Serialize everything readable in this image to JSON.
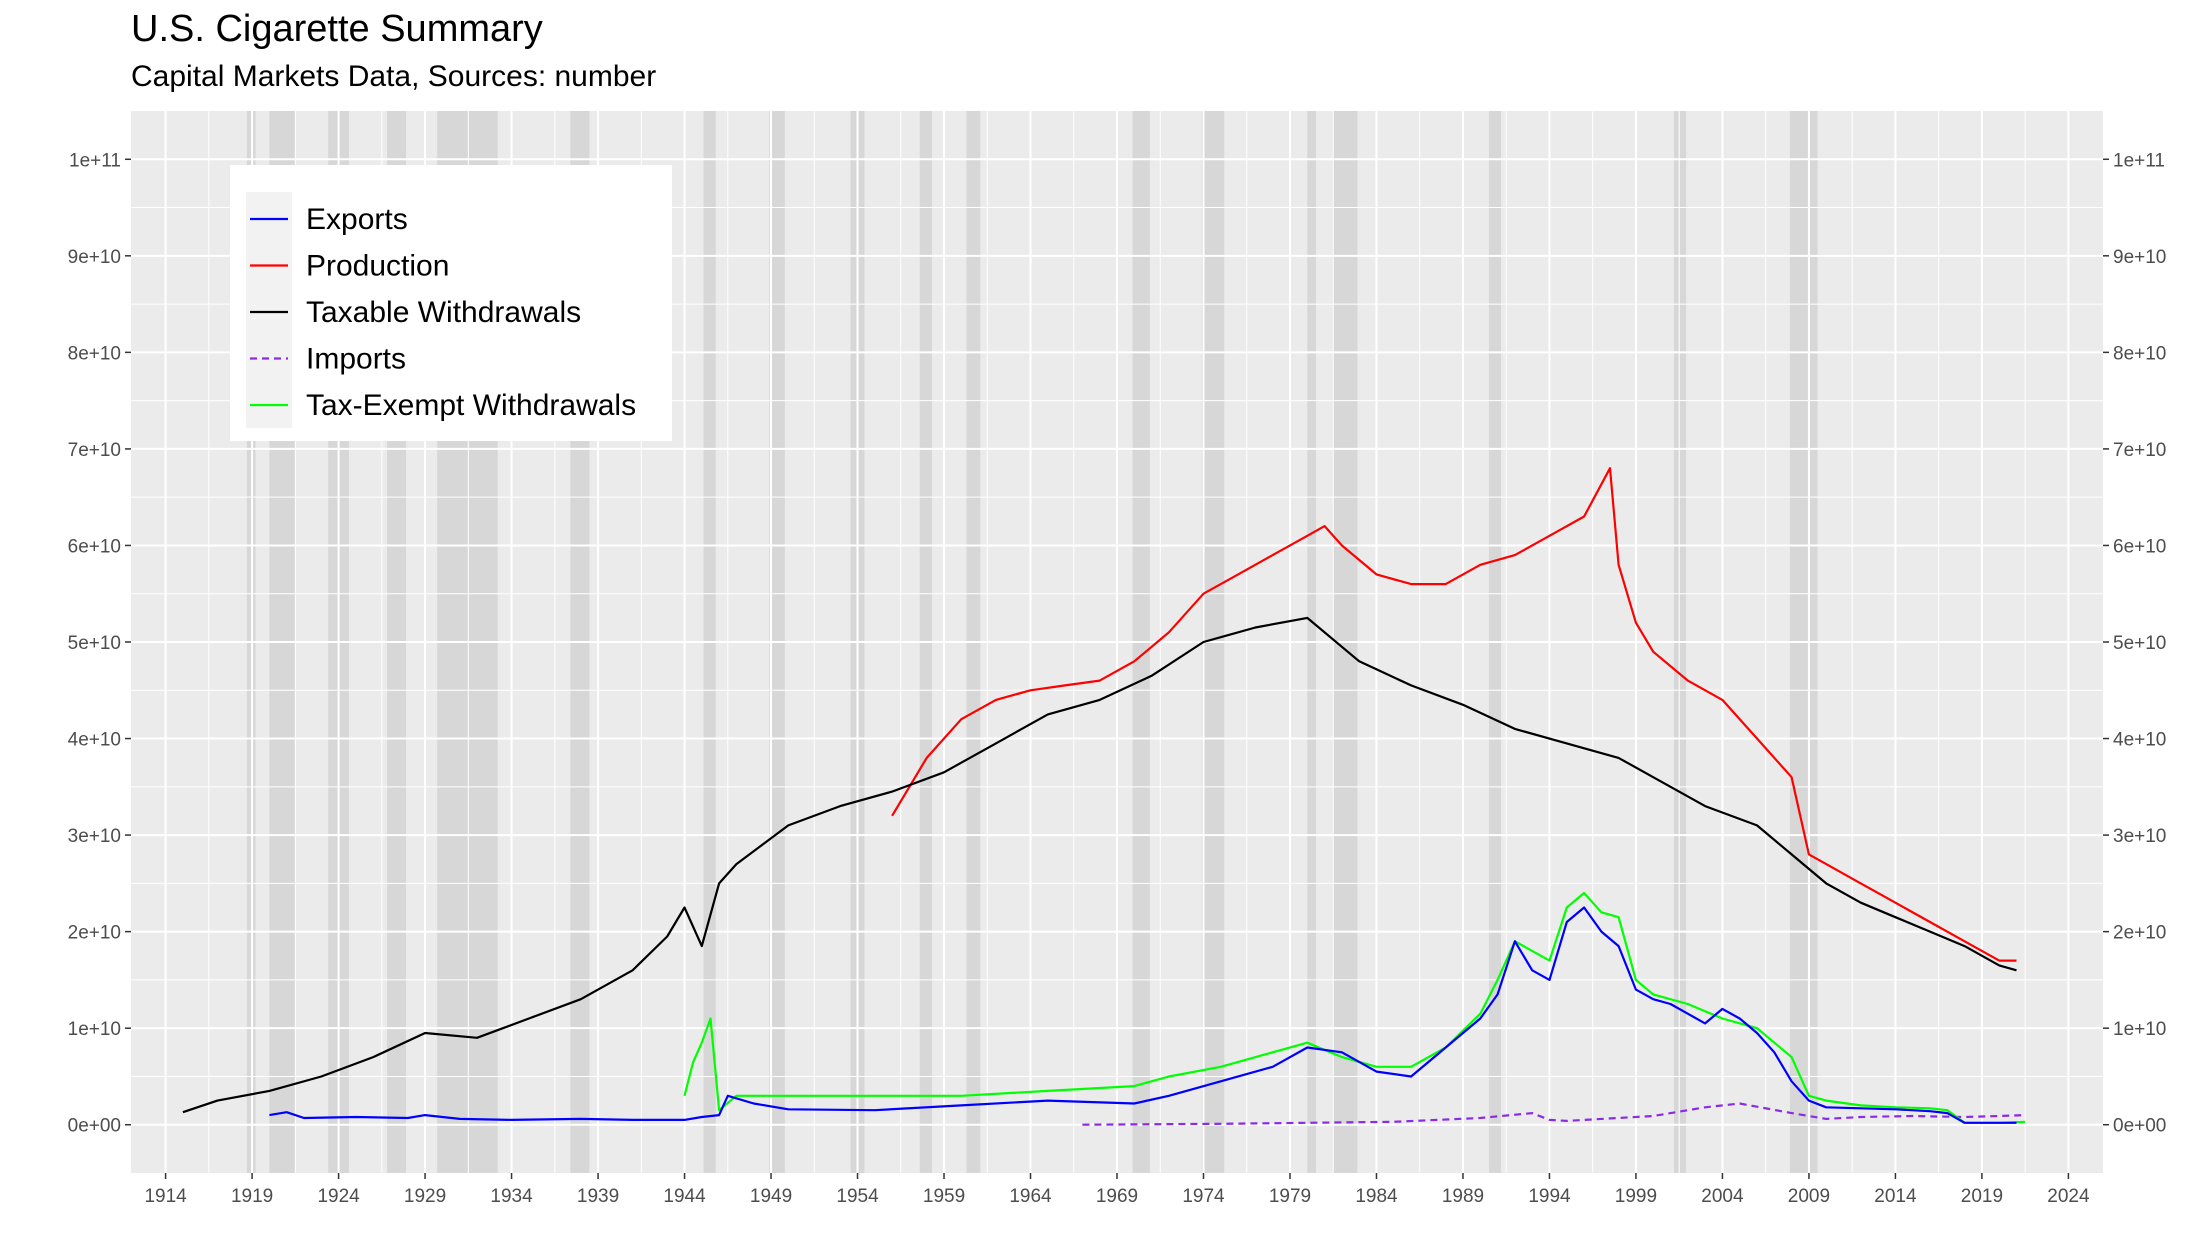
{
  "chart_data": {
    "type": "line",
    "title": "U.S. Cigarette Summary",
    "subtitle": "Capital Markets Data, Sources: number",
    "xlabel": "",
    "ylabel": "",
    "x_range": [
      1912,
      2026
    ],
    "x_ticks": [
      "1914",
      "1919",
      "1924",
      "1929",
      "1934",
      "1939",
      "1944",
      "1949",
      "1954",
      "1959",
      "1964",
      "1969",
      "1974",
      "1979",
      "1984",
      "1989",
      "1994",
      "1999",
      "2004",
      "2009",
      "2014",
      "2019",
      "2024"
    ],
    "ylim": [
      -5000000000,
      105000000000
    ],
    "y_ticks": [
      0,
      10000000000,
      20000000000,
      30000000000,
      40000000000,
      50000000000,
      60000000000,
      70000000000,
      80000000000,
      90000000000,
      100000000000
    ],
    "y_tick_labels": [
      "0e+00",
      "1e+10",
      "2e+10",
      "3e+10",
      "4e+10",
      "5e+10",
      "6e+10",
      "7e+10",
      "8e+10",
      "9e+10",
      "1e+11"
    ],
    "dual_y_axis": true,
    "grid": true,
    "legend_position": "top-left",
    "recession_shading": [
      [
        1918.7,
        1919.2
      ],
      [
        1920.0,
        1921.5
      ],
      [
        1923.4,
        1924.6
      ],
      [
        1926.8,
        1927.9
      ],
      [
        1929.7,
        1933.2
      ],
      [
        1937.4,
        1938.5
      ],
      [
        1945.1,
        1945.8
      ],
      [
        1948.9,
        1949.8
      ],
      [
        1953.6,
        1954.4
      ],
      [
        1957.6,
        1958.3
      ],
      [
        1960.3,
        1961.1
      ],
      [
        1969.9,
        1970.9
      ],
      [
        1973.9,
        1975.2
      ],
      [
        1980.0,
        1980.5
      ],
      [
        1981.5,
        1982.9
      ],
      [
        1990.5,
        1991.2
      ],
      [
        2001.2,
        2001.9
      ],
      [
        2007.9,
        2009.5
      ]
    ],
    "series": [
      {
        "name": "Exports",
        "color": "#0000ff",
        "dash": "solid",
        "x": [
          1920,
          1921,
          1922,
          1925,
          1928,
          1929,
          1931,
          1934,
          1938,
          1941,
          1944,
          1945,
          1946,
          1946.5,
          1948,
          1950,
          1955,
          1960,
          1965,
          1970,
          1972,
          1975,
          1978,
          1980,
          1982,
          1984,
          1986,
          1988,
          1990,
          1991,
          1992,
          1993,
          1994,
          1995,
          1996,
          1997,
          1998,
          1999,
          2000,
          2001,
          2002,
          2003,
          2004,
          2005,
          2006,
          2007,
          2008,
          2009,
          2010,
          2012,
          2014,
          2016,
          2017,
          2018,
          2019,
          2020,
          2021
        ],
        "y": [
          1000000000,
          1300000000,
          700000000,
          800000000,
          700000000,
          1000000000,
          600000000,
          500000000,
          600000000,
          500000000,
          500000000,
          800000000,
          1000000000,
          3000000000,
          2200000000,
          1600000000,
          1500000000,
          2000000000,
          2500000000,
          2200000000,
          3000000000,
          4500000000,
          6000000000,
          8000000000,
          7500000000,
          5500000000,
          5000000000,
          8000000000,
          11000000000,
          13500000000,
          19000000000,
          16000000000,
          15000000000,
          21000000000,
          22500000000,
          20000000000,
          18500000000,
          14000000000,
          13000000000,
          12500000000,
          11500000000,
          10500000000,
          12000000000,
          11000000000,
          9500000000,
          7500000000,
          4500000000,
          2500000000,
          1800000000,
          1700000000,
          1600000000,
          1400000000,
          1200000000,
          200000000,
          200000000,
          200000000,
          200000000
        ]
      },
      {
        "name": "Production",
        "color": "#ff0000",
        "dash": "solid",
        "x": [
          1956,
          1958,
          1960,
          1962,
          1964,
          1966,
          1968,
          1970,
          1972,
          1974,
          1976,
          1978,
          1980,
          1981,
          1982,
          1984,
          1986,
          1988,
          1990,
          1992,
          1994,
          1996,
          1997.5,
          1998,
          1999,
          2000,
          2002,
          2004,
          2006,
          2008,
          2009,
          2010,
          2012,
          2014,
          2016,
          2018,
          2019,
          2020,
          2021
        ],
        "y": [
          32000000000,
          38000000000,
          42000000000,
          44000000000,
          45000000000,
          45500000000,
          46000000000,
          48000000000,
          51000000000,
          55000000000,
          57000000000,
          59000000000,
          61000000000,
          62000000000,
          60000000000,
          57000000000,
          56000000000,
          56000000000,
          58000000000,
          59000000000,
          61000000000,
          63000000000,
          68000000000,
          58000000000,
          52000000000,
          49000000000,
          46000000000,
          44000000000,
          40000000000,
          36000000000,
          28000000000,
          27000000000,
          25000000000,
          23000000000,
          21000000000,
          19000000000,
          18000000000,
          17000000000,
          17000000000
        ]
      },
      {
        "name": "Taxable Withdrawals",
        "color": "#000000",
        "dash": "solid",
        "x": [
          1915,
          1917,
          1920,
          1923,
          1926,
          1929,
          1932,
          1935,
          1938,
          1941,
          1943,
          1944,
          1945,
          1946,
          1947,
          1950,
          1953,
          1956,
          1959,
          1962,
          1965,
          1968,
          1971,
          1974,
          1977,
          1980,
          1983,
          1986,
          1989,
          1992,
          1995,
          1998,
          2000,
          2003,
          2006,
          2008,
          2010,
          2012,
          2014,
          2016,
          2018,
          2020,
          2021
        ],
        "y": [
          1300000000,
          2500000000,
          3500000000,
          5000000000,
          7000000000,
          9500000000,
          9000000000,
          11000000000,
          13000000000,
          16000000000,
          19500000000,
          22500000000,
          18500000000,
          25000000000,
          27000000000,
          31000000000,
          33000000000,
          34500000000,
          36500000000,
          39500000000,
          42500000000,
          44000000000,
          46500000000,
          50000000000,
          51500000000,
          52500000000,
          48000000000,
          45500000000,
          43500000000,
          41000000000,
          39500000000,
          38000000000,
          36000000000,
          33000000000,
          31000000000,
          28000000000,
          25000000000,
          23000000000,
          21500000000,
          20000000000,
          18500000000,
          16500000000,
          16000000000
        ]
      },
      {
        "name": "Imports",
        "color": "#8b2be2",
        "dash": "dashed",
        "x": [
          1967,
          1975,
          1985,
          1990,
          1993,
          1994,
          1995,
          2000,
          2003,
          2005,
          2008,
          2010,
          2012,
          2015,
          2018,
          2020,
          2021.5
        ],
        "y": [
          0,
          100000000,
          300000000,
          700000000,
          1200000000,
          500000000,
          400000000,
          900000000,
          1800000000,
          2200000000,
          1200000000,
          600000000,
          800000000,
          900000000,
          800000000,
          900000000,
          1000000000
        ]
      },
      {
        "name": "Tax-Exempt Withdrawals",
        "color": "#00ff00",
        "dash": "solid",
        "x": [
          1944,
          1944.5,
          1945,
          1945.5,
          1946,
          1947,
          1950,
          1955,
          1960,
          1965,
          1970,
          1972,
          1975,
          1978,
          1980,
          1982,
          1984,
          1986,
          1988,
          1990,
          1991,
          1992,
          1993,
          1994,
          1995,
          1996,
          1997,
          1998,
          1999,
          2000,
          2002,
          2004,
          2006,
          2008,
          2009,
          2010,
          2012,
          2014,
          2016,
          2017,
          2018,
          2020,
          2021.5
        ],
        "y": [
          3000000000,
          6500000000,
          8500000000,
          11000000000,
          1500000000,
          3000000000,
          3000000000,
          3000000000,
          3000000000,
          3500000000,
          4000000000,
          5000000000,
          6000000000,
          7500000000,
          8500000000,
          7000000000,
          6000000000,
          6000000000,
          8000000000,
          11500000000,
          15000000000,
          19000000000,
          18000000000,
          17000000000,
          22500000000,
          24000000000,
          22000000000,
          21500000000,
          15000000000,
          13500000000,
          12500000000,
          11000000000,
          10000000000,
          7000000000,
          3000000000,
          2500000000,
          2000000000,
          1800000000,
          1700000000,
          1500000000,
          200000000,
          200000000,
          300000000
        ]
      }
    ]
  }
}
